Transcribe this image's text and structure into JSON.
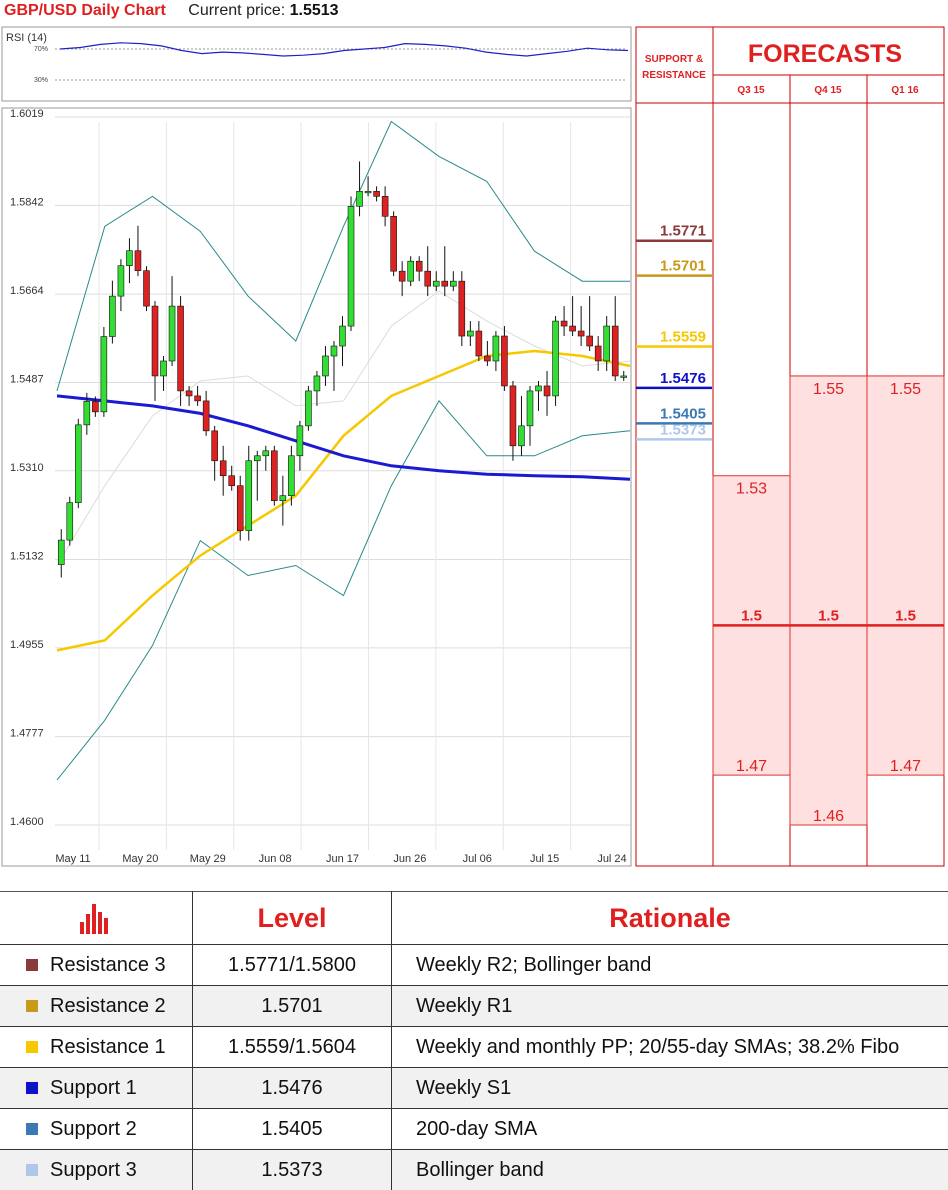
{
  "header": {
    "pair_title": "GBP/USD Daily Chart",
    "price_label": "Current price:",
    "price_value": "1.5513"
  },
  "colors": {
    "resistance_3": "#8b3a3a",
    "resistance_2": "#c89a1a",
    "resistance_1": "#f5c800",
    "support_1": "#1010c8",
    "support_2": "#3c78b4",
    "support_3": "#b0c8e8"
  },
  "rsi": {
    "label": "RSI (14)",
    "upper_label": "70%",
    "lower_label": "30%",
    "values": [
      70,
      72,
      76,
      78,
      77,
      74,
      68,
      64,
      66,
      65,
      63,
      61,
      62,
      64,
      68,
      70,
      72,
      77,
      76,
      74,
      71,
      66,
      63,
      61,
      64,
      67,
      71,
      69,
      68
    ]
  },
  "chart_data": {
    "type": "candlestick",
    "y_ticks": [
      "1.6019",
      "1.5842",
      "1.5664",
      "1.5487",
      "1.5310",
      "1.5132",
      "1.4955",
      "1.4777",
      "1.4600"
    ],
    "ylim": [
      1.46,
      1.6019
    ],
    "x_ticks": [
      "May 11",
      "May 20",
      "May 29",
      "Jun 08",
      "Jun 17",
      "Jun 26",
      "Jul 06",
      "Jul 15",
      "Jul 24"
    ],
    "candles": [
      {
        "o": 1.5122,
        "h": 1.5193,
        "l": 1.5096,
        "c": 1.5171
      },
      {
        "o": 1.5171,
        "h": 1.5258,
        "l": 1.516,
        "c": 1.5246
      },
      {
        "o": 1.5246,
        "h": 1.5414,
        "l": 1.5235,
        "c": 1.5402
      },
      {
        "o": 1.5402,
        "h": 1.5466,
        "l": 1.5382,
        "c": 1.5449
      },
      {
        "o": 1.5449,
        "h": 1.5459,
        "l": 1.5418,
        "c": 1.5428
      },
      {
        "o": 1.5428,
        "h": 1.5598,
        "l": 1.5418,
        "c": 1.5579
      },
      {
        "o": 1.5579,
        "h": 1.5691,
        "l": 1.5565,
        "c": 1.566
      },
      {
        "o": 1.566,
        "h": 1.5734,
        "l": 1.563,
        "c": 1.5721
      },
      {
        "o": 1.5721,
        "h": 1.5776,
        "l": 1.5686,
        "c": 1.5751
      },
      {
        "o": 1.5751,
        "h": 1.5801,
        "l": 1.57,
        "c": 1.5711
      },
      {
        "o": 1.5711,
        "h": 1.572,
        "l": 1.563,
        "c": 1.564
      },
      {
        "o": 1.564,
        "h": 1.565,
        "l": 1.545,
        "c": 1.55
      },
      {
        "o": 1.55,
        "h": 1.554,
        "l": 1.547,
        "c": 1.553
      },
      {
        "o": 1.553,
        "h": 1.57,
        "l": 1.552,
        "c": 1.564
      },
      {
        "o": 1.564,
        "h": 1.566,
        "l": 1.544,
        "c": 1.547
      },
      {
        "o": 1.547,
        "h": 1.548,
        "l": 1.544,
        "c": 1.546
      },
      {
        "o": 1.546,
        "h": 1.548,
        "l": 1.544,
        "c": 1.545
      },
      {
        "o": 1.545,
        "h": 1.547,
        "l": 1.538,
        "c": 1.539
      },
      {
        "o": 1.539,
        "h": 1.54,
        "l": 1.529,
        "c": 1.533
      },
      {
        "o": 1.533,
        "h": 1.536,
        "l": 1.526,
        "c": 1.53
      },
      {
        "o": 1.53,
        "h": 1.532,
        "l": 1.527,
        "c": 1.528
      },
      {
        "o": 1.528,
        "h": 1.53,
        "l": 1.517,
        "c": 1.519
      },
      {
        "o": 1.519,
        "h": 1.536,
        "l": 1.517,
        "c": 1.533
      },
      {
        "o": 1.533,
        "h": 1.535,
        "l": 1.525,
        "c": 1.534
      },
      {
        "o": 1.534,
        "h": 1.536,
        "l": 1.531,
        "c": 1.535
      },
      {
        "o": 1.535,
        "h": 1.536,
        "l": 1.524,
        "c": 1.525
      },
      {
        "o": 1.525,
        "h": 1.53,
        "l": 1.52,
        "c": 1.526
      },
      {
        "o": 1.526,
        "h": 1.536,
        "l": 1.524,
        "c": 1.534
      },
      {
        "o": 1.534,
        "h": 1.541,
        "l": 1.531,
        "c": 1.54
      },
      {
        "o": 1.54,
        "h": 1.548,
        "l": 1.539,
        "c": 1.547
      },
      {
        "o": 1.547,
        "h": 1.551,
        "l": 1.544,
        "c": 1.55
      },
      {
        "o": 1.55,
        "h": 1.556,
        "l": 1.548,
        "c": 1.554
      },
      {
        "o": 1.554,
        "h": 1.557,
        "l": 1.547,
        "c": 1.556
      },
      {
        "o": 1.556,
        "h": 1.562,
        "l": 1.552,
        "c": 1.56
      },
      {
        "o": 1.56,
        "h": 1.586,
        "l": 1.559,
        "c": 1.584
      },
      {
        "o": 1.584,
        "h": 1.593,
        "l": 1.582,
        "c": 1.587
      },
      {
        "o": 1.587,
        "h": 1.59,
        "l": 1.586,
        "c": 1.587
      },
      {
        "o": 1.587,
        "h": 1.588,
        "l": 1.585,
        "c": 1.586
      },
      {
        "o": 1.586,
        "h": 1.588,
        "l": 1.58,
        "c": 1.582
      },
      {
        "o": 1.582,
        "h": 1.583,
        "l": 1.57,
        "c": 1.571
      },
      {
        "o": 1.571,
        "h": 1.573,
        "l": 1.566,
        "c": 1.569
      },
      {
        "o": 1.569,
        "h": 1.574,
        "l": 1.568,
        "c": 1.573
      },
      {
        "o": 1.573,
        "h": 1.574,
        "l": 1.569,
        "c": 1.571
      },
      {
        "o": 1.571,
        "h": 1.576,
        "l": 1.566,
        "c": 1.568
      },
      {
        "o": 1.568,
        "h": 1.571,
        "l": 1.567,
        "c": 1.569
      },
      {
        "o": 1.569,
        "h": 1.576,
        "l": 1.566,
        "c": 1.568
      },
      {
        "o": 1.568,
        "h": 1.571,
        "l": 1.567,
        "c": 1.569
      },
      {
        "o": 1.569,
        "h": 1.571,
        "l": 1.556,
        "c": 1.558
      },
      {
        "o": 1.558,
        "h": 1.561,
        "l": 1.556,
        "c": 1.559
      },
      {
        "o": 1.559,
        "h": 1.561,
        "l": 1.553,
        "c": 1.554
      },
      {
        "o": 1.554,
        "h": 1.557,
        "l": 1.552,
        "c": 1.553
      },
      {
        "o": 1.553,
        "h": 1.559,
        "l": 1.551,
        "c": 1.558
      },
      {
        "o": 1.558,
        "h": 1.56,
        "l": 1.547,
        "c": 1.548
      },
      {
        "o": 1.548,
        "h": 1.549,
        "l": 1.533,
        "c": 1.536
      },
      {
        "o": 1.536,
        "h": 1.546,
        "l": 1.534,
        "c": 1.54
      },
      {
        "o": 1.54,
        "h": 1.548,
        "l": 1.536,
        "c": 1.547
      },
      {
        "o": 1.547,
        "h": 1.549,
        "l": 1.543,
        "c": 1.548
      },
      {
        "o": 1.548,
        "h": 1.551,
        "l": 1.542,
        "c": 1.546
      },
      {
        "o": 1.546,
        "h": 1.562,
        "l": 1.544,
        "c": 1.561
      },
      {
        "o": 1.561,
        "h": 1.564,
        "l": 1.558,
        "c": 1.56
      },
      {
        "o": 1.56,
        "h": 1.566,
        "l": 1.558,
        "c": 1.559
      },
      {
        "o": 1.559,
        "h": 1.564,
        "l": 1.556,
        "c": 1.558
      },
      {
        "o": 1.558,
        "h": 1.566,
        "l": 1.555,
        "c": 1.556
      },
      {
        "o": 1.556,
        "h": 1.558,
        "l": 1.551,
        "c": 1.553
      },
      {
        "o": 1.553,
        "h": 1.562,
        "l": 1.551,
        "c": 1.56
      },
      {
        "o": 1.56,
        "h": 1.566,
        "l": 1.549,
        "c": 1.55
      },
      {
        "o": 1.55,
        "h": 1.551,
        "l": 1.549,
        "c": 1.55
      }
    ],
    "sma_200": [
      1.546,
      1.545,
      1.544,
      1.5425,
      1.54,
      1.537,
      1.534,
      1.532,
      1.531,
      1.5303,
      1.53,
      1.5298,
      1.5293
    ],
    "sma_55": [
      1.495,
      1.497,
      1.506,
      1.514,
      1.52,
      1.526,
      1.538,
      1.546,
      1.55,
      1.554,
      1.555,
      1.554,
      1.552
    ],
    "sma_20": [
      1.512,
      1.528,
      1.542,
      1.549,
      1.55,
      1.544,
      1.545,
      1.56,
      1.567,
      1.561,
      1.556,
      1.552,
      1.553
    ],
    "bb_upper": [
      1.547,
      1.58,
      1.586,
      1.579,
      1.566,
      1.557,
      1.58,
      1.601,
      1.594,
      1.589,
      1.575,
      1.569,
      1.569
    ],
    "bb_lower": [
      1.469,
      1.481,
      1.496,
      1.517,
      1.51,
      1.512,
      1.506,
      1.528,
      1.545,
      1.534,
      1.534,
      1.538,
      1.539
    ]
  },
  "levels": [
    {
      "value": "1.5771",
      "key": "resistance_3"
    },
    {
      "value": "1.5701",
      "key": "resistance_2"
    },
    {
      "value": "1.5559",
      "key": "resistance_1"
    },
    {
      "value": "1.5476",
      "key": "support_1"
    },
    {
      "value": "1.5405",
      "key": "support_2"
    },
    {
      "value": "1.5373",
      "key": "support_3"
    }
  ],
  "forecasts": {
    "title": "FORECASTS",
    "sr_label_1": "SUPPORT &",
    "sr_label_2": "RESISTANCE",
    "quarters": [
      "Q3 15",
      "Q4 15",
      "Q1 16"
    ],
    "columns": [
      {
        "high": "1.53",
        "high_v": 1.53,
        "mid": "1.5",
        "mid_v": 1.5,
        "low": "1.47",
        "low_v": 1.47
      },
      {
        "high": "1.55",
        "high_v": 1.55,
        "mid": "1.5",
        "mid_v": 1.5,
        "low": "1.46",
        "low_v": 1.46
      },
      {
        "high": "1.55",
        "high_v": 1.55,
        "mid": "1.5",
        "mid_v": 1.5,
        "low": "1.47",
        "low_v": 1.47
      }
    ]
  },
  "table": {
    "header_level": "Level",
    "header_rationale": "Rationale",
    "rows": [
      {
        "name": "Resistance 3",
        "level": "1.5771/1.5800",
        "rationale": "Weekly R2; Bollinger band"
      },
      {
        "name": "Resistance 2",
        "level": "1.5701",
        "rationale": "Weekly R1"
      },
      {
        "name": "Resistance 1",
        "level": "1.5559/1.5604",
        "rationale": "Weekly and monthly PP; 20/55-day SMAs; 38.2% Fibo"
      },
      {
        "name": "Support 1",
        "level": "1.5476",
        "rationale": "Weekly S1"
      },
      {
        "name": "Support 2",
        "level": "1.5405",
        "rationale": "200-day SMA"
      },
      {
        "name": "Support 3",
        "level": "1.5373",
        "rationale": "Bollinger band"
      }
    ]
  }
}
